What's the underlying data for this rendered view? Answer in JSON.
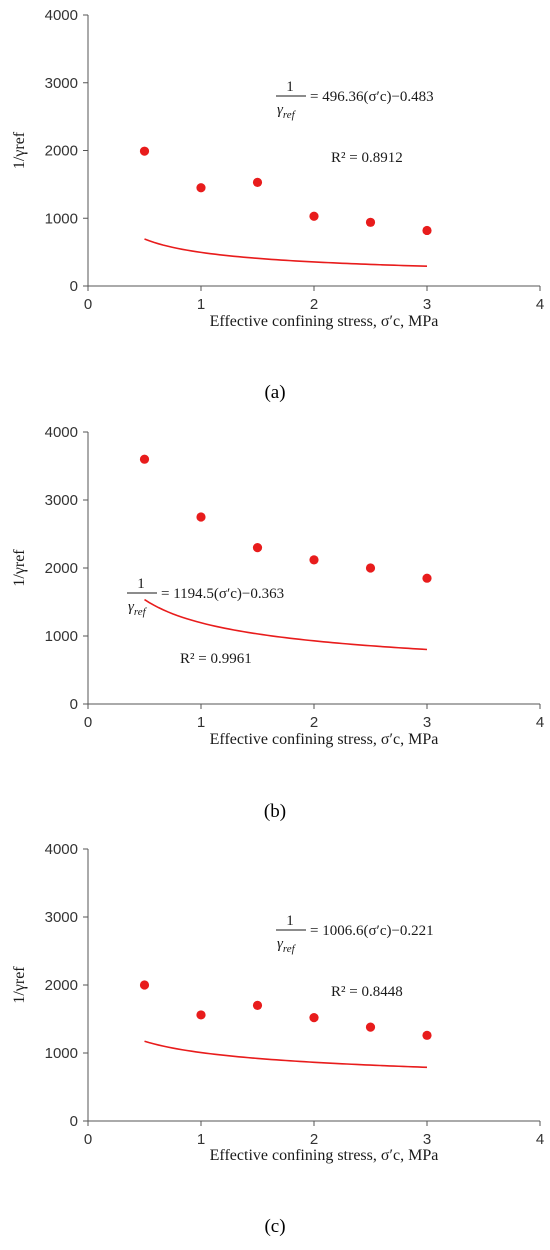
{
  "chart_data": [
    {
      "type": "scatter",
      "panel_label": "(a)",
      "xlabel": "Effective confining stress, σ′c, MPa",
      "ylabel": "1/γref",
      "xlim": [
        0,
        4
      ],
      "ylim": [
        0,
        4000
      ],
      "x_ticks": [
        "0",
        "1",
        "2",
        "3",
        "4"
      ],
      "y_ticks": [
        "0",
        "1000",
        "2000",
        "3000",
        "4000"
      ],
      "grid": false,
      "marker_color": "#e81c1c",
      "line_color": "#e81c1c",
      "series": [
        {
          "x": [
            0.5,
            1.0,
            1.5,
            2.0,
            2.5,
            3.0
          ],
          "y": [
            1990,
            1450,
            1530,
            1030,
            940,
            820
          ]
        }
      ],
      "fit": {
        "coefficient": 496.36,
        "exponent": -0.483,
        "x_range": [
          0.5,
          3.0
        ],
        "equation": "= 496.36(σ′c)−0.483",
        "r2": "R² = 0.8912"
      }
    },
    {
      "type": "scatter",
      "panel_label": "(b)",
      "xlabel": "Effective confining stress, σ′c, MPa",
      "ylabel": "1/γref",
      "xlim": [
        0,
        4
      ],
      "ylim": [
        0,
        4000
      ],
      "x_ticks": [
        "0",
        "1",
        "2",
        "3",
        "4"
      ],
      "y_ticks": [
        "0",
        "1000",
        "2000",
        "3000",
        "4000"
      ],
      "grid": false,
      "marker_color": "#e81c1c",
      "line_color": "#e81c1c",
      "series": [
        {
          "x": [
            0.5,
            1.0,
            1.5,
            2.0,
            2.5,
            3.0
          ],
          "y": [
            3600,
            2750,
            2300,
            2120,
            2000,
            1850
          ]
        }
      ],
      "fit": {
        "coefficient": 1194.5,
        "exponent": -0.363,
        "x_range": [
          0.5,
          3.0
        ],
        "equation": "= 1194.5(σ′c)−0.363",
        "r2": "R² = 0.9961"
      }
    },
    {
      "type": "scatter",
      "panel_label": "(c)",
      "xlabel": "Effective confining stress, σ′c, MPa",
      "ylabel": "1/γref",
      "xlim": [
        0,
        4
      ],
      "ylim": [
        0,
        4000
      ],
      "x_ticks": [
        "0",
        "1",
        "2",
        "3",
        "4"
      ],
      "y_ticks": [
        "0",
        "1000",
        "2000",
        "3000",
        "4000"
      ],
      "grid": false,
      "marker_color": "#e81c1c",
      "line_color": "#e81c1c",
      "series": [
        {
          "x": [
            0.5,
            1.0,
            1.5,
            2.0,
            2.5,
            3.0
          ],
          "y": [
            2000,
            1560,
            1700,
            1520,
            1380,
            1260
          ]
        }
      ],
      "fit": {
        "coefficient": 1006.6,
        "exponent": -0.221,
        "x_range": [
          0.5,
          3.0
        ],
        "equation": "= 1006.6(σ′c)−0.221",
        "r2": "R² = 0.8448"
      }
    }
  ]
}
